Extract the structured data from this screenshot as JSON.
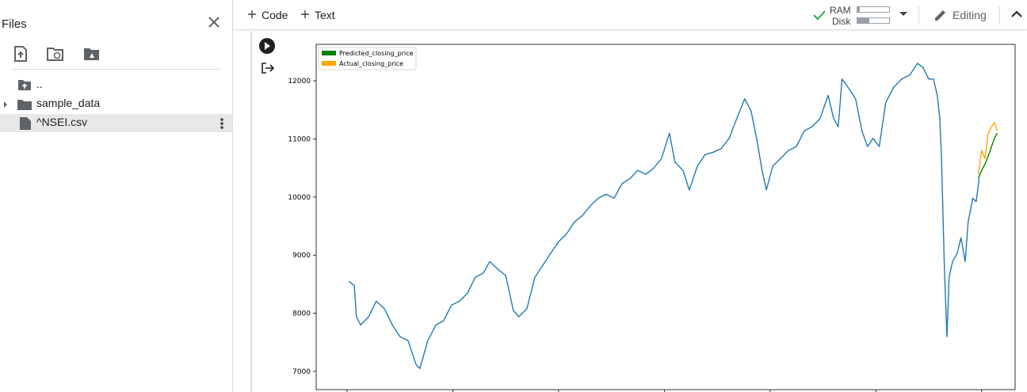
{
  "sidebar": {
    "title": "Files",
    "items": [
      "..",
      "sample_data",
      "^NSEI.csv"
    ]
  },
  "toolbar": {
    "code": "Code",
    "text": "Text",
    "ram": "RAM",
    "disk": "Disk",
    "mode": "Editing"
  },
  "chart_data": {
    "type": "line",
    "series": [
      {
        "color": "#1f7bb4",
        "x": [
          4,
          17,
          22,
          32,
          51,
          69,
          88,
          107,
          125,
          144,
          163,
          172,
          191,
          210,
          228,
          247,
          266,
          285,
          303,
          322,
          337,
          356,
          375,
          393,
          406,
          425,
          444,
          463,
          481,
          500,
          519,
          537,
          556,
          575,
          594,
          612,
          631,
          650,
          669,
          687,
          706,
          725,
          743,
          762,
          775,
          794,
          809,
          828,
          846,
          865,
          884,
          903,
          921,
          940,
          955,
          968,
          981,
          991,
          1006,
          1024,
          1043,
          1062,
          1081,
          1099,
          1118,
          1137,
          1150,
          1161,
          1170,
          1184,
          1202,
          1217,
          1230,
          1243,
          1258,
          1273,
          1292,
          1311,
          1330,
          1348,
          1361,
          1375,
          1386,
          1395,
          1401,
          1405,
          1408,
          1412,
          1416,
          1418,
          1423,
          1431,
          1442,
          1451,
          1461,
          1468,
          1479,
          1487,
          1494
        ],
        "values": [
          8550,
          8480,
          7940,
          7800,
          7940,
          8210,
          8080,
          7800,
          7600,
          7530,
          7120,
          7050,
          7530,
          7800,
          7870,
          8140,
          8210,
          8350,
          8620,
          8690,
          8890,
          8760,
          8650,
          8050,
          7940,
          8080,
          8620,
          8830,
          9030,
          9230,
          9370,
          9570,
          9680,
          9850,
          9980,
          10050,
          9980,
          10230,
          10320,
          10460,
          10390,
          10500,
          10660,
          11100,
          10600,
          10460,
          10120,
          10530,
          10730,
          10770,
          10830,
          11010,
          11350,
          11690,
          11480,
          11010,
          10460,
          10120,
          10530,
          10660,
          10800,
          10870,
          11140,
          11210,
          11350,
          11750,
          11350,
          11210,
          12030,
          11890,
          11690,
          11140,
          10870,
          11010,
          10870,
          11620,
          11890,
          12030,
          12100,
          12300,
          12230,
          12030,
          12030,
          11750,
          11350,
          10660,
          9850,
          8760,
          7940,
          7600,
          8620,
          8890,
          9030,
          9300,
          8890,
          9570,
          9980,
          9920,
          10320
        ]
      },
      {
        "name": "Predicted_closing_price",
        "color": "#008000",
        "x": [
          1492,
          1500,
          1510,
          1520,
          1530,
          1537
        ],
        "values": [
          10320,
          10460,
          10600,
          10800,
          11010,
          11100
        ]
      },
      {
        "name": "Actual_closing_price",
        "color": "#ffa500",
        "x": [
          1492,
          1500,
          1508,
          1515,
          1523,
          1530,
          1537
        ],
        "values": [
          10390,
          10800,
          10660,
          11080,
          11210,
          11280,
          11140
        ]
      }
    ],
    "xlim": [
      -73,
      1579
    ],
    "xticks": [
      0,
      250,
      500,
      750,
      1000,
      1250,
      1500
    ],
    "ylim": [
      6687,
      12627
    ],
    "yticks": [
      7000,
      8000,
      9000,
      10000,
      11000,
      12000
    ],
    "legend": "upper left"
  }
}
